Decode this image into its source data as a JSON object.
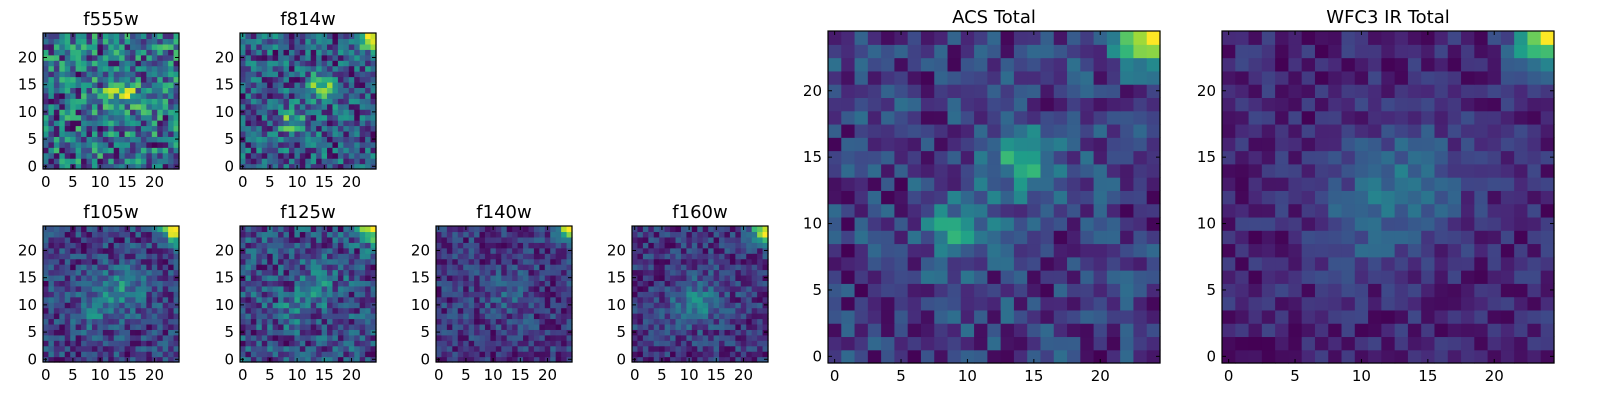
{
  "chart_data": [
    {
      "type": "heatmap",
      "title": "f555w",
      "x_ticks": [
        "0",
        "5",
        "10",
        "15",
        "20"
      ],
      "y_ticks": [
        "0",
        "5",
        "10",
        "15",
        "20"
      ],
      "xlim": [
        -0.5,
        24.5
      ],
      "ylim": [
        -0.5,
        24.5
      ],
      "grid": false,
      "noise": 0.85,
      "features": [
        {
          "x": 14,
          "y": 14,
          "amp": 0.55,
          "sigma": 2.2
        }
      ],
      "corner_amp": 0.15,
      "seed": 11
    },
    {
      "type": "heatmap",
      "title": "f814w",
      "x_ticks": [
        "0",
        "5",
        "10",
        "15",
        "20"
      ],
      "y_ticks": [
        "0",
        "5",
        "10",
        "15",
        "20"
      ],
      "xlim": [
        -0.5,
        24.5
      ],
      "ylim": [
        -0.5,
        24.5
      ],
      "grid": false,
      "noise": 0.55,
      "features": [
        {
          "x": 14.5,
          "y": 14.5,
          "amp": 0.55,
          "sigma": 1.6
        },
        {
          "x": 9,
          "y": 8.5,
          "amp": 0.35,
          "sigma": 1.8
        }
      ],
      "corner_amp": 0.9,
      "seed": 23
    },
    {
      "type": "heatmap",
      "title": "f105w",
      "x_ticks": [
        "0",
        "5",
        "10",
        "15",
        "20"
      ],
      "y_ticks": [
        "0",
        "5",
        "10",
        "15",
        "20"
      ],
      "xlim": [
        -0.5,
        24.5
      ],
      "ylim": [
        -0.5,
        24.5
      ],
      "grid": false,
      "noise": 0.45,
      "features": [
        {
          "x": 14,
          "y": 13,
          "amp": 0.3,
          "sigma": 3
        },
        {
          "x": 9,
          "y": 9,
          "amp": 0.2,
          "sigma": 2.5
        }
      ],
      "corner_amp": 1.0,
      "seed": 37
    },
    {
      "type": "heatmap",
      "title": "f125w",
      "x_ticks": [
        "0",
        "5",
        "10",
        "15",
        "20"
      ],
      "y_ticks": [
        "0",
        "5",
        "10",
        "15",
        "20"
      ],
      "xlim": [
        -0.5,
        24.5
      ],
      "ylim": [
        -0.5,
        24.5
      ],
      "grid": false,
      "noise": 0.6,
      "features": [
        {
          "x": 13.5,
          "y": 13.5,
          "amp": 0.35,
          "sigma": 2.2
        },
        {
          "x": 9,
          "y": 9,
          "amp": 0.2,
          "sigma": 2
        }
      ],
      "corner_amp": 1.0,
      "seed": 41
    },
    {
      "type": "heatmap",
      "title": "f140w",
      "x_ticks": [
        "0",
        "5",
        "10",
        "15",
        "20"
      ],
      "y_ticks": [
        "0",
        "5",
        "10",
        "15",
        "20"
      ],
      "xlim": [
        -0.5,
        24.5
      ],
      "ylim": [
        -0.5,
        24.5
      ],
      "grid": false,
      "noise": 0.5,
      "features": [
        {
          "x": 13,
          "y": 12,
          "amp": 0.18,
          "sigma": 3
        }
      ],
      "corner_amp": 1.1,
      "seed": 53
    },
    {
      "type": "heatmap",
      "title": "f160w",
      "x_ticks": [
        "0",
        "5",
        "10",
        "15",
        "20"
      ],
      "y_ticks": [
        "0",
        "5",
        "10",
        "15",
        "20"
      ],
      "xlim": [
        -0.5,
        24.5
      ],
      "ylim": [
        -0.5,
        24.5
      ],
      "grid": false,
      "noise": 0.42,
      "features": [
        {
          "x": 12,
          "y": 11,
          "amp": 0.3,
          "sigma": 3
        },
        {
          "x": 9,
          "y": 9,
          "amp": 0.15,
          "sigma": 2
        }
      ],
      "corner_amp": 1.1,
      "seed": 67
    },
    {
      "type": "heatmap",
      "title": "ACS Total",
      "x_ticks": [
        "0",
        "5",
        "10",
        "15",
        "20"
      ],
      "y_ticks": [
        "0",
        "5",
        "10",
        "15",
        "20"
      ],
      "xlim": [
        -0.5,
        24.5
      ],
      "ylim": [
        -0.5,
        24.5
      ],
      "grid": false,
      "noise": 0.45,
      "features": [
        {
          "x": 14.5,
          "y": 14.5,
          "amp": 0.65,
          "sigma": 1.6
        },
        {
          "x": 9.5,
          "y": 9.5,
          "amp": 0.45,
          "sigma": 1.8
        }
      ],
      "corner_amp": 1.0,
      "seed": 79
    },
    {
      "type": "heatmap",
      "title": "WFC3 IR Total",
      "x_ticks": [
        "0",
        "5",
        "10",
        "15",
        "20"
      ],
      "y_ticks": [
        "0",
        "5",
        "10",
        "15",
        "20"
      ],
      "xlim": [
        -0.5,
        24.5
      ],
      "ylim": [
        -0.5,
        24.5
      ],
      "grid": false,
      "noise": 0.28,
      "features": [
        {
          "x": 13.5,
          "y": 13.5,
          "amp": 0.3,
          "sigma": 3
        },
        {
          "x": 10,
          "y": 10,
          "amp": 0.2,
          "sigma": 2.5
        }
      ],
      "corner_amp": 1.0,
      "seed": 97
    }
  ],
  "colors": {
    "colormap": "viridis"
  }
}
